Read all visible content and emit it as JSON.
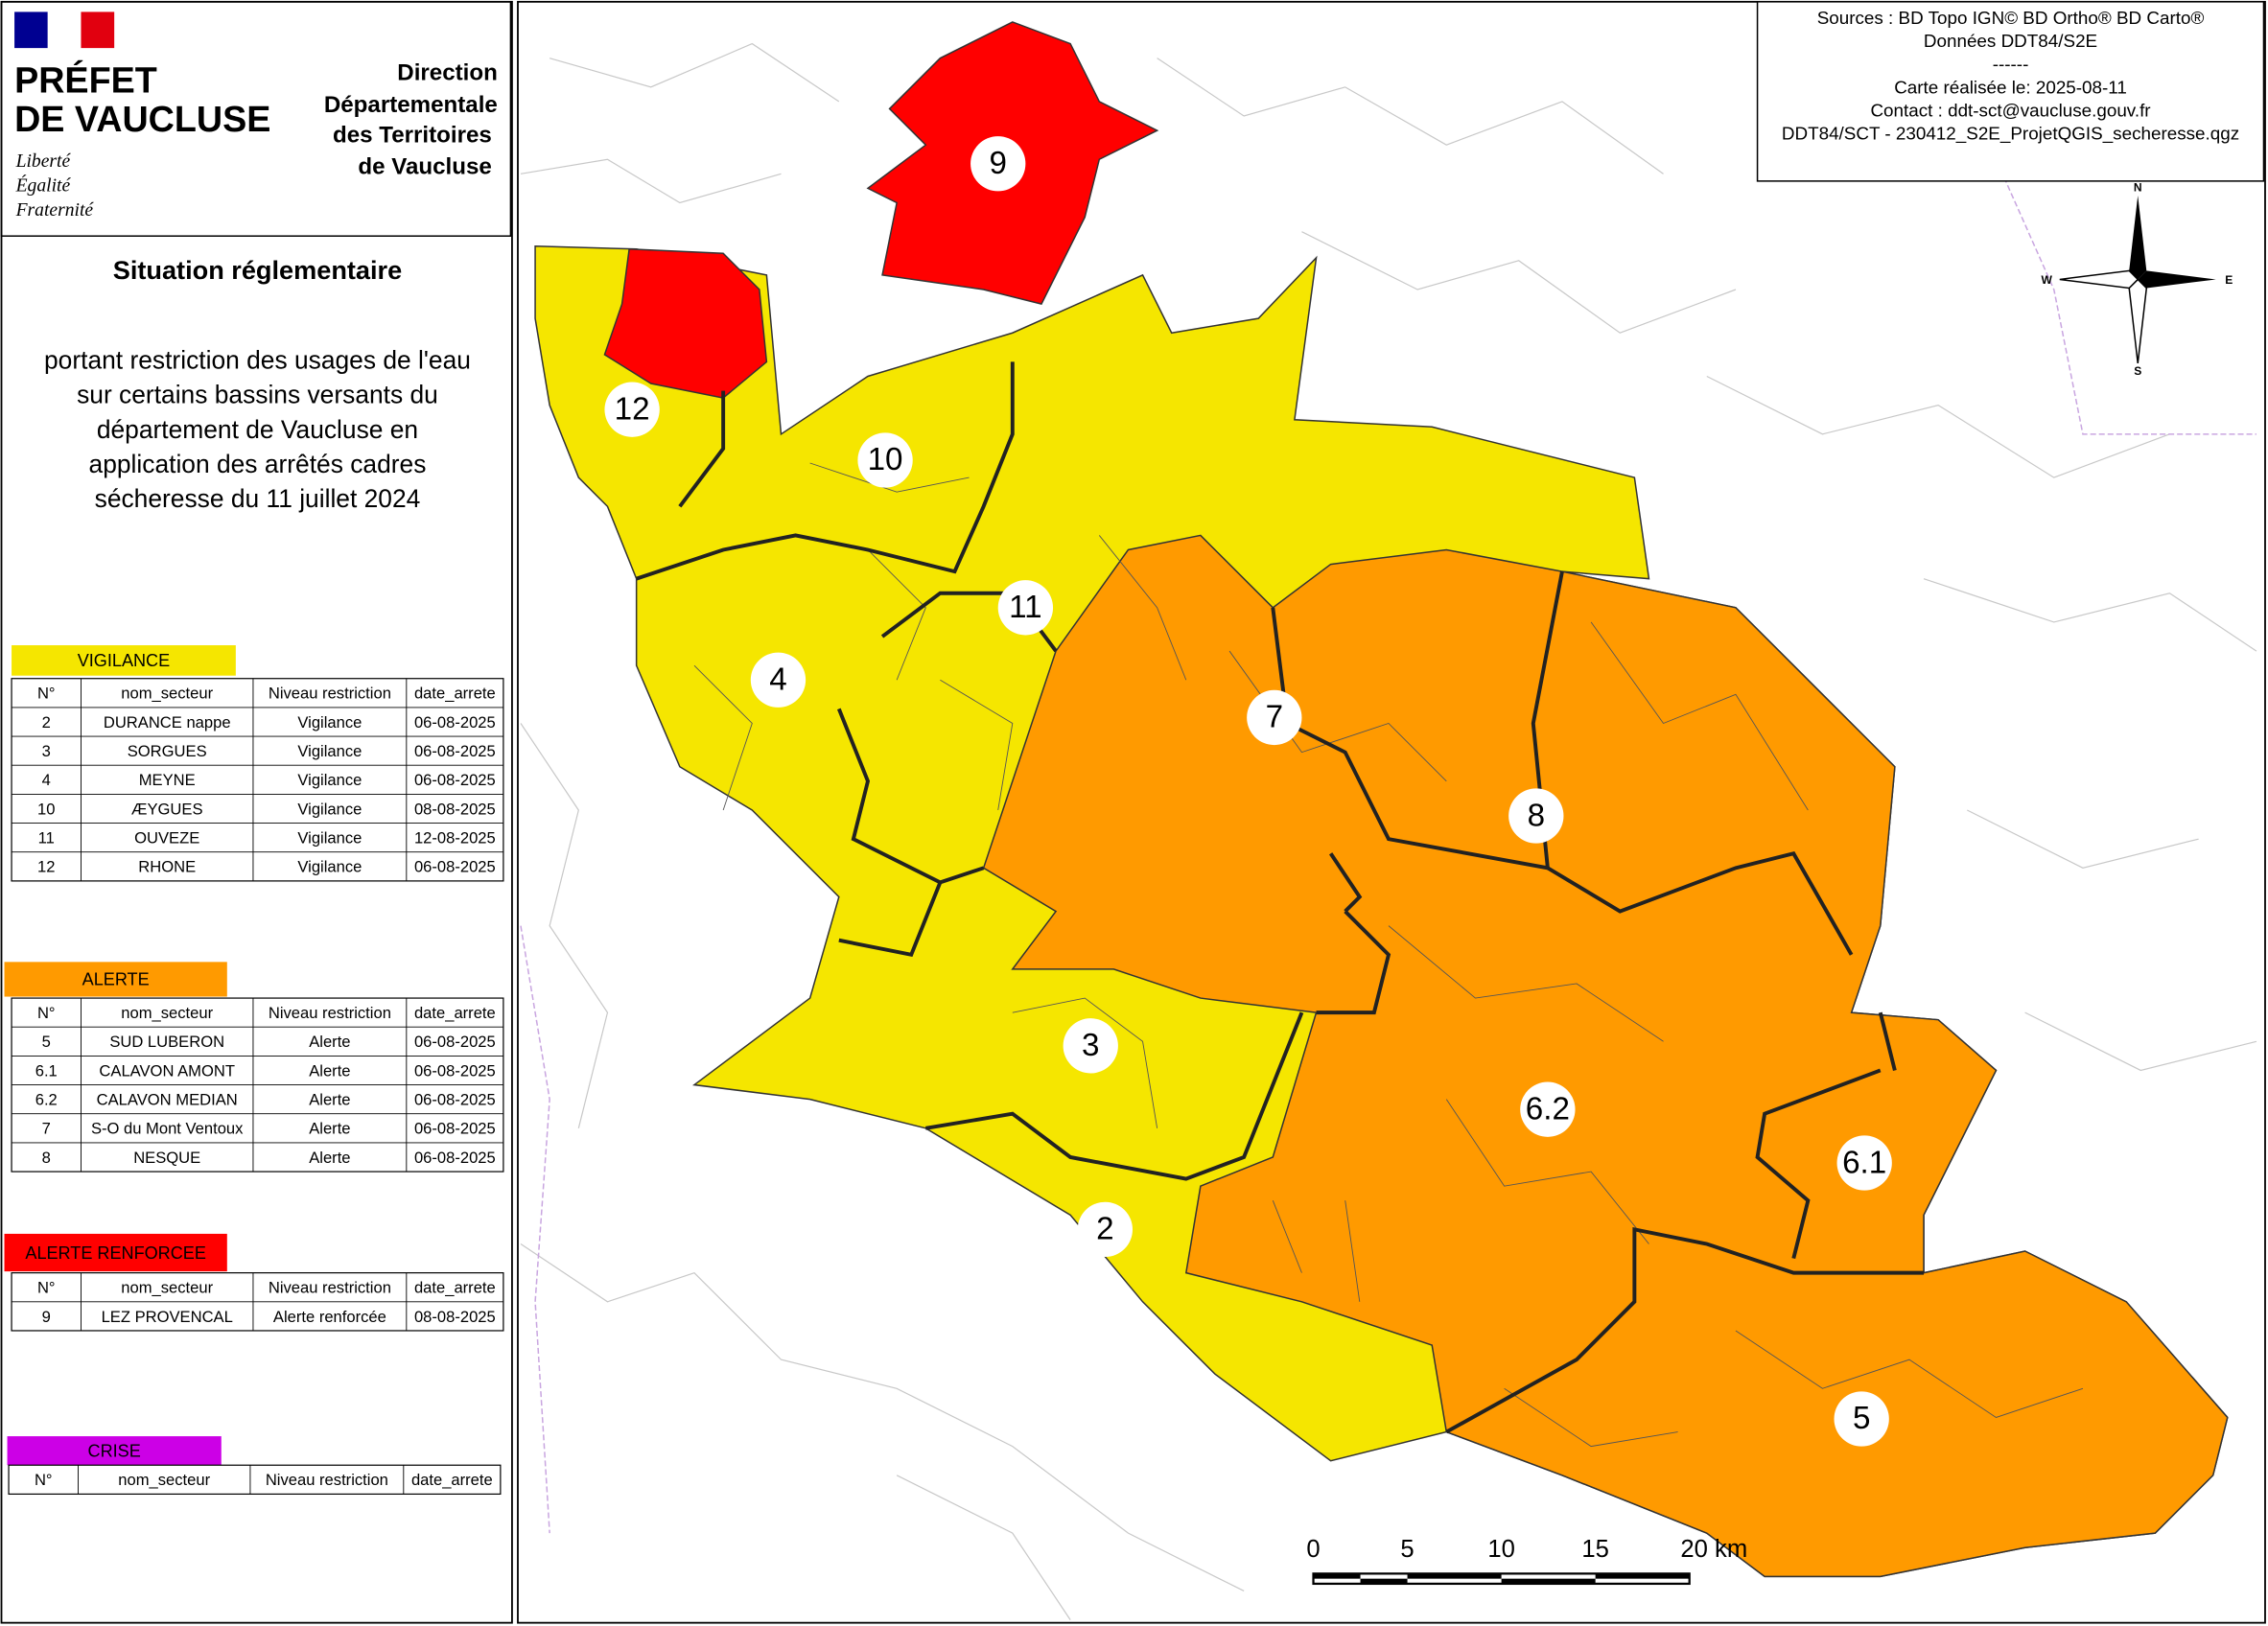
{
  "header": {
    "brand": [
      "PRÉFET",
      "DE VAUCLUSE"
    ],
    "motto": [
      "Liberté",
      "Égalité",
      "Fraternité"
    ],
    "direction": [
      "Direction",
      "Départementale",
      "des Territoires",
      "de Vaucluse"
    ]
  },
  "title": "Situation réglementaire",
  "subtitle": [
    "portant restriction des usages de l'eau",
    "sur certains bassins versants du",
    "département de Vaucluse en",
    "application des arrêtés cadres",
    "sécheresse du 11 juillet 2024"
  ],
  "legend": {
    "columns": [
      "N°",
      "nom_secteur",
      "Niveau restriction",
      "date_arrete"
    ],
    "groups": [
      {
        "name": "VIGILANCE",
        "color": "#f5e600",
        "text_color": "#000000",
        "rows": [
          [
            "2",
            "DURANCE nappe",
            "Vigilance",
            "06-08-2025"
          ],
          [
            "3",
            "SORGUES",
            "Vigilance",
            "06-08-2025"
          ],
          [
            "4",
            "MEYNE",
            "Vigilance",
            "06-08-2025"
          ],
          [
            "10",
            "ÆYGUES",
            "Vigilance",
            "08-08-2025"
          ],
          [
            "11",
            "OUVEZE",
            "Vigilance",
            "12-08-2025"
          ],
          [
            "12",
            "RHONE",
            "Vigilance",
            "06-08-2025"
          ]
        ]
      },
      {
        "name": "ALERTE",
        "color": "#ff9a00",
        "text_color": "#000000",
        "rows": [
          [
            "5",
            "SUD LUBERON",
            "Alerte",
            "06-08-2025"
          ],
          [
            "6.1",
            "CALAVON AMONT",
            "Alerte",
            "06-08-2025"
          ],
          [
            "6.2",
            "CALAVON MEDIAN",
            "Alerte",
            "06-08-2025"
          ],
          [
            "7",
            "S-O du Mont Ventoux",
            "Alerte",
            "06-08-2025"
          ],
          [
            "8",
            "NESQUE",
            "Alerte",
            "06-08-2025"
          ]
        ]
      },
      {
        "name": "ALERTE RENFORCEE",
        "color": "#ff0000",
        "text_color": "#000000",
        "rows": [
          [
            "9",
            "LEZ PROVENCAL",
            "Alerte renforcée",
            "08-08-2025"
          ]
        ]
      },
      {
        "name": "CRISE",
        "color": "#cc00e6",
        "text_color": "#000000",
        "rows": []
      }
    ]
  },
  "sources": [
    "Sources : BD Topo IGN© BD Ortho® BD Carto®",
    "Données DDT84/S2E",
    "------",
    "Carte réalisée le: 2025-08-11",
    "Contact : ddt-sct@vaucluse.gouv.fr",
    "DDT84/SCT - 230412_S2E_ProjetQGIS_secheresse.qgz"
  ],
  "compass": [
    "N",
    "S",
    "E",
    "W"
  ],
  "scale_bar": [
    "0",
    "5",
    "10",
    "15",
    "20 km"
  ],
  "sectors": [
    "9",
    "12",
    "10",
    "11",
    "4",
    "7",
    "8",
    "3",
    "2",
    "6.2",
    "6.1",
    "5"
  ]
}
